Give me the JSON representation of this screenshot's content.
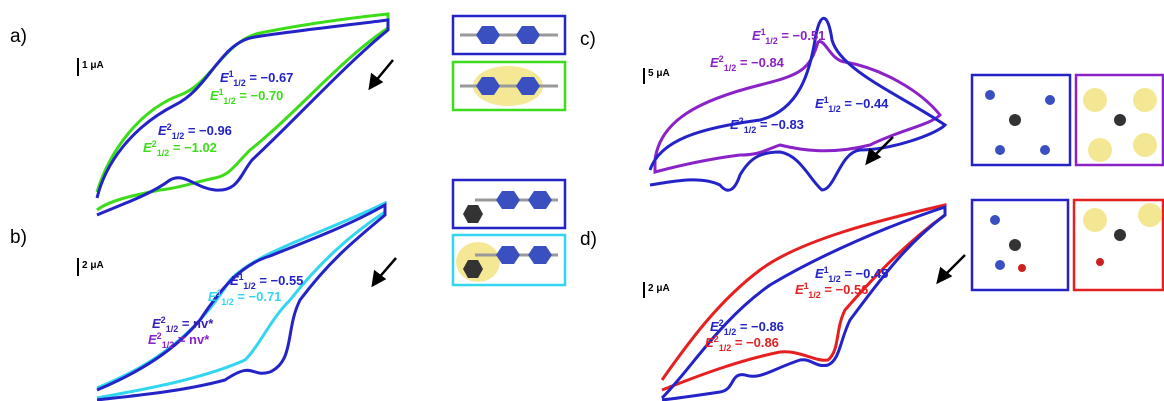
{
  "panels": [
    {
      "label": "a)",
      "scale": "1 μA",
      "annotations": [
        {
          "symbol": "E",
          "sup": "1",
          "sub": "1/2",
          "text": " = −0.67",
          "color": "#2323c8"
        },
        {
          "symbol": "E",
          "sup": "1",
          "sub": "1/2",
          "text": " = −0.70",
          "color": "#3ddc1a"
        },
        {
          "symbol": "E",
          "sup": "2",
          "sub": "1/2",
          "text": " = −0.96",
          "color": "#2323c8"
        },
        {
          "symbol": "E",
          "sup": "2",
          "sub": "1/2",
          "text": " = −1.02",
          "color": "#3ddc1a"
        }
      ]
    },
    {
      "label": "b)",
      "scale": "2 μA",
      "annotations": [
        {
          "symbol": "E",
          "sup": "1",
          "sub": "1/2",
          "text": " = −0.55",
          "color": "#2323c8"
        },
        {
          "symbol": "E",
          "sup": "1",
          "sub": "1/2",
          "text": " = −0.71",
          "color": "#33d6f0"
        },
        {
          "symbol": "E",
          "sup": "2",
          "sub": "1/2",
          "text": " = nv*",
          "color": "#3a1fb0"
        },
        {
          "symbol": "E",
          "sup": "2",
          "sub": "1/2",
          "text": " = nv*",
          "color": "#8a22c8"
        }
      ]
    },
    {
      "label": "c)",
      "scale": "5 μA",
      "annotations": [
        {
          "symbol": "E",
          "sup": "1",
          "sub": "1/2",
          "text": " = −0.51",
          "color": "#8a22c8"
        },
        {
          "symbol": "E",
          "sup": "2",
          "sub": "1/2",
          "text": " = −0.84",
          "color": "#8a22c8"
        },
        {
          "symbol": "E",
          "sup": "1",
          "sub": "1/2",
          "text": " = −0.44",
          "color": "#2323c8"
        },
        {
          "symbol": "E",
          "sup": "2",
          "sub": "1/2",
          "text": " = −0.83",
          "color": "#2323c8"
        }
      ]
    },
    {
      "label": "d)",
      "scale": "2 μA",
      "annotations": [
        {
          "symbol": "E",
          "sup": "1",
          "sub": "1/2",
          "text": " = −0.45",
          "color": "#2323c8"
        },
        {
          "symbol": "E",
          "sup": "1",
          "sub": "1/2",
          "text": " = −0.56",
          "color": "#e62020"
        },
        {
          "symbol": "E",
          "sup": "2",
          "sub": "1/2",
          "text": " = −0.86",
          "color": "#2323c8"
        },
        {
          "symbol": "E",
          "sup": "2",
          "sub": "1/2",
          "text": " = −0.86",
          "color": "#e62020"
        }
      ]
    }
  ]
}
